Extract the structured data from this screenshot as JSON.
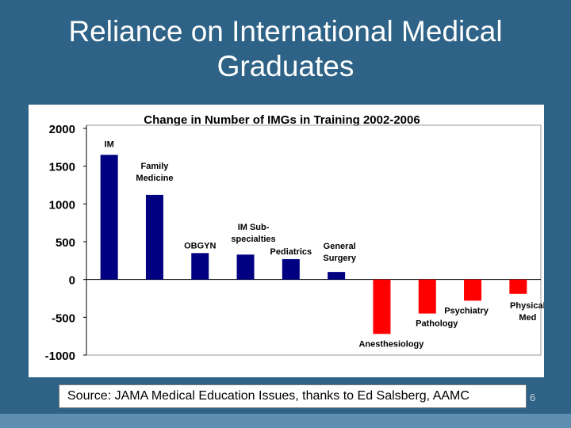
{
  "slide": {
    "title_line1": "Reliance on International Medical",
    "title_line2": "Graduates",
    "source": "Source: JAMA Medical Education Issues, thanks to Ed Salsberg, AAMC",
    "page_number": "6",
    "background_color": "#2e6387"
  },
  "chart_data": {
    "type": "bar",
    "title": "Change in Number of IMGs in Training 2002-2006",
    "xlabel": "",
    "ylabel": "",
    "ylim": [
      -1000,
      2000
    ],
    "yticks": [
      2000,
      1500,
      1000,
      500,
      0,
      -500,
      -1000
    ],
    "grid": false,
    "legend": "none",
    "positive_color": "#000080",
    "negative_color": "#ff0000",
    "categories": [
      [
        "IM"
      ],
      [
        "Family",
        "Medicine"
      ],
      [
        "OBGYN"
      ],
      [
        "IM Sub-",
        "specialties"
      ],
      [
        "Pediatrics"
      ],
      [
        "General",
        "Surgery"
      ],
      [
        "Anesthesiology"
      ],
      [
        "Pathology"
      ],
      [
        "Psychiatry"
      ],
      [
        "Physical",
        "Med"
      ]
    ],
    "values": [
      1650,
      1120,
      350,
      330,
      270,
      100,
      -720,
      -450,
      -280,
      -190
    ]
  }
}
